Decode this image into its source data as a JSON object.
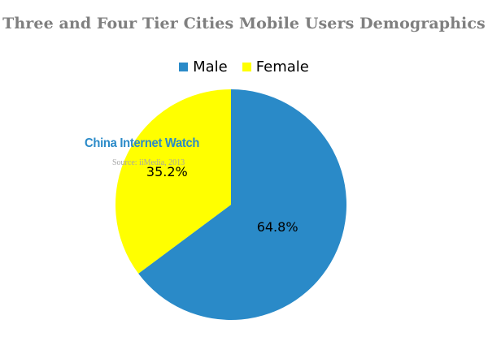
{
  "chart_data": {
    "type": "pie",
    "title": "Three and Four Tier Cities Mobile Users Demographics",
    "categories": [
      "Male",
      "Female"
    ],
    "values": [
      64.8,
      35.2
    ],
    "data_labels": [
      "64.8%",
      "35.2%"
    ],
    "colors": [
      "#2a8ac8",
      "#ffff00"
    ],
    "legend": {
      "position": "top",
      "entries": [
        "Male",
        "Female"
      ]
    },
    "start_angle_deg": 0,
    "direction": "clockwise"
  },
  "watermark": {
    "brand": "China Internet Watch",
    "source": "Source: iiMedia, 2013"
  }
}
